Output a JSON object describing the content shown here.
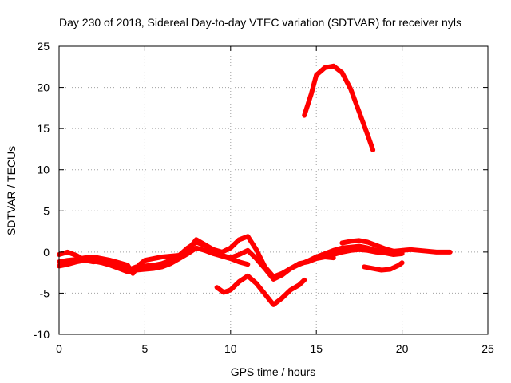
{
  "chart_data": {
    "type": "line",
    "title": "Day 230 of 2018, Sidereal Day-to-day VTEC variation (SDTVAR) for receiver nyls",
    "xlabel": "GPS time / hours",
    "ylabel": "SDTVAR / TECUs",
    "xlim": [
      0,
      25
    ],
    "ylim": [
      -10,
      25
    ],
    "xticks": [
      0,
      5,
      10,
      15,
      20,
      25
    ],
    "yticks": [
      -10,
      -5,
      0,
      5,
      10,
      15,
      20,
      25
    ],
    "xtick_labels": [
      "0",
      "5",
      "10",
      "15",
      "20",
      "25"
    ],
    "ytick_labels": [
      "-10",
      "-5",
      "0",
      "5",
      "10",
      "15",
      "20",
      "25"
    ],
    "grid": true,
    "legend": "none",
    "color": "#ff0000",
    "series": [
      {
        "name": "trace-1",
        "x": [
          0,
          0.5,
          1,
          1.5,
          2,
          2.5,
          3,
          3.5,
          4,
          4.3,
          4.7,
          5,
          5.5,
          6,
          6.5,
          7,
          7.5,
          8,
          8.5,
          9,
          9.5,
          10,
          10.5,
          11,
          11.5,
          12,
          12.5,
          13,
          13.5,
          14,
          14.5,
          15,
          15.5,
          16,
          16.5,
          17,
          17.5,
          18,
          18.5,
          19,
          19.5,
          20,
          20.5,
          21,
          21.5,
          22,
          22.5,
          22.8
        ],
        "y": [
          -1.2,
          -1,
          -0.9,
          -0.7,
          -0.6,
          -0.8,
          -1,
          -1.3,
          -1.6,
          -2.6,
          -1.5,
          -1,
          -0.8,
          -0.6,
          -0.5,
          -0.4,
          0.5,
          1.2,
          0.8,
          0.3,
          0,
          0.5,
          1.5,
          1.9,
          0.3,
          -1.8,
          -3,
          -2.6,
          -2,
          -1.5,
          -1.1,
          -0.6,
          -0.5,
          -0.3,
          0,
          0.2,
          0.3,
          0.2,
          0,
          -0.1,
          0.1,
          0.2,
          0.3,
          0.2,
          0.1,
          0,
          0,
          0
        ]
      },
      {
        "name": "trace-2",
        "x": [
          0,
          0.5,
          1,
          1.5,
          2,
          2.5,
          3,
          3.5,
          4,
          4.5,
          5,
          5.5,
          6,
          6.5,
          7,
          7.5,
          8,
          8.5,
          9,
          9.5,
          10,
          10.5,
          11,
          11.5,
          12,
          12.5,
          13,
          13.5,
          14,
          14.5,
          15,
          15.5,
          16
        ],
        "y": [
          -0.3,
          0,
          -0.4,
          -1,
          -1.2,
          -1.1,
          -1.4,
          -1.8,
          -2.2,
          -1.8,
          -1.7,
          -1.6,
          -1.4,
          -1,
          -0.5,
          0.2,
          1.5,
          0.9,
          0.3,
          -0.4,
          -0.7,
          -0.3,
          0.2,
          -0.8,
          -2,
          -3.3,
          -2.8,
          -2,
          -1.4,
          -1.2,
          -0.8,
          -0.6,
          -0.7
        ]
      },
      {
        "name": "trace-3",
        "x": [
          0,
          0.5,
          1,
          1.5,
          2,
          2.5,
          3,
          3.5,
          4,
          4.5,
          5,
          5.5,
          6,
          6.5,
          7,
          7.5,
          8,
          8.5,
          9,
          9.5,
          10,
          10.5,
          11
        ],
        "y": [
          -1.7,
          -1.5,
          -1.2,
          -1,
          -1.1,
          -1.3,
          -1.6,
          -2,
          -2.4,
          -2.2,
          -2.1,
          -2,
          -1.8,
          -1.4,
          -0.8,
          -0.2,
          0.5,
          0.2,
          -0.2,
          -0.5,
          -0.8,
          -1.2,
          -1.5
        ]
      },
      {
        "name": "trace-4",
        "x": [
          9.2,
          9.6,
          10,
          10.5,
          11,
          11.5,
          12,
          12.5,
          13,
          13.5,
          14,
          14.3
        ],
        "y": [
          -4.3,
          -4.9,
          -4.6,
          -3.6,
          -2.9,
          -3.8,
          -5.1,
          -6.4,
          -5.6,
          -4.6,
          -4,
          -3.4
        ]
      },
      {
        "name": "trace-5",
        "x": [
          14.3,
          14.7,
          15,
          15.5,
          16,
          16.5,
          17,
          17.5,
          18,
          18.3
        ],
        "y": [
          16.6,
          19.2,
          21.5,
          22.4,
          22.6,
          21.8,
          19.8,
          17,
          14.2,
          12.4
        ]
      },
      {
        "name": "trace-6",
        "x": [
          15,
          15.5,
          16,
          16.5,
          17,
          17.5,
          18,
          18.5,
          19,
          19.5,
          20
        ],
        "y": [
          -0.6,
          -0.2,
          0.2,
          0.5,
          0.6,
          0.7,
          0.5,
          0.2,
          -0.1,
          -0.3,
          -0.2
        ]
      },
      {
        "name": "trace-7",
        "x": [
          16.5,
          17,
          17.5,
          18,
          18.5,
          19,
          19.5,
          20
        ],
        "y": [
          1.1,
          1.3,
          1.4,
          1.2,
          0.8,
          0.4,
          0.1,
          -0.1
        ]
      },
      {
        "name": "trace-8",
        "x": [
          17.8,
          18.3,
          18.8,
          19.3,
          19.8,
          20
        ],
        "y": [
          -1.8,
          -2,
          -2.2,
          -2.1,
          -1.6,
          -1.3
        ]
      }
    ]
  }
}
